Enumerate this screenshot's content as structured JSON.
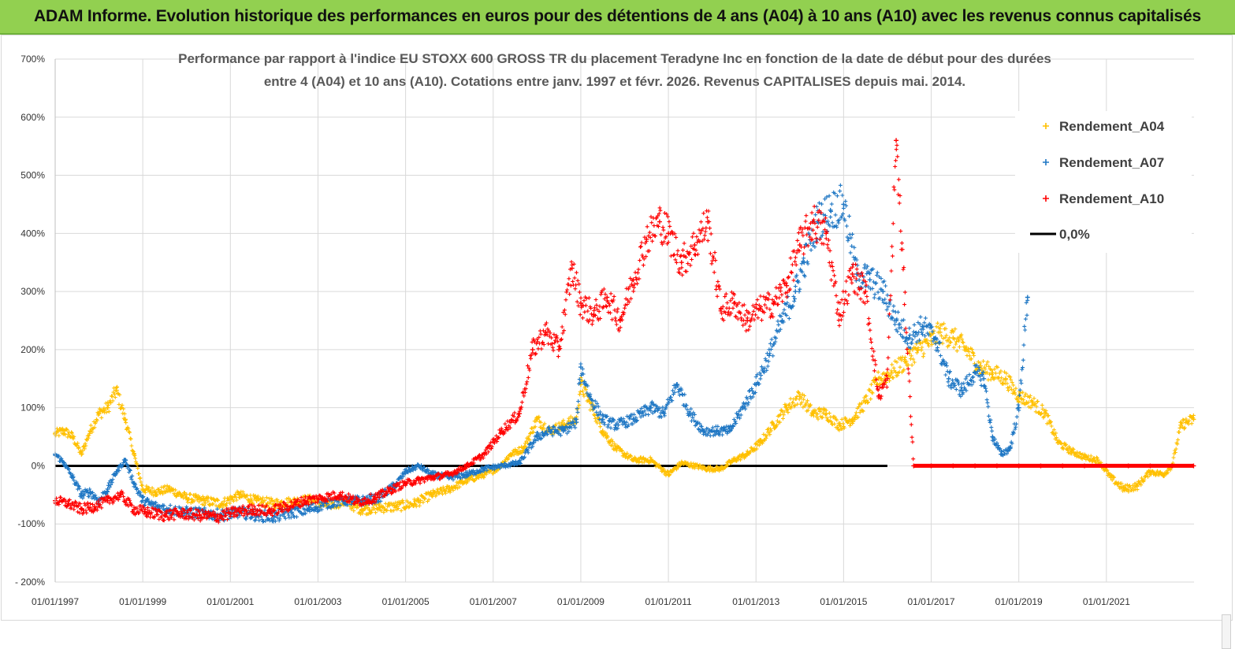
{
  "banner": {
    "title": "ADAM Informe. Evolution historique des performances en euros pour des détentions de 4 ans (A04) à 10 ans (A10) avec les revenus connus capitalisés",
    "background": "#92d050"
  },
  "chart_data": {
    "type": "scatter",
    "title_line1": "Performance par rapport à l'indice EU STOXX 600 GROSS TR  du placement Teradyne Inc en fonction de la date de début pour des durées",
    "title_line2": "entre 4 (A04) et 10 ans (A10). Cotations entre janv. 1997 et févr. 2026. Revenus CAPITALISES depuis mai. 2014.",
    "xlim": [
      "1997-01-01",
      "2022-12-31"
    ],
    "ylim": [
      -200,
      700
    ],
    "ytick_values": [
      -200,
      -100,
      0,
      100,
      200,
      300,
      400,
      500,
      600,
      700
    ],
    "ytick_labels": [
      "- 200%",
      "-100%",
      "0%",
      "100%",
      "200%",
      "300%",
      "400%",
      "500%",
      "600%",
      "700%"
    ],
    "xtick_labels": [
      "01/01/1997",
      "01/01/1999",
      "01/01/2001",
      "01/01/2003",
      "01/01/2005",
      "01/01/2007",
      "01/01/2009",
      "01/01/2011",
      "01/01/2013",
      "01/01/2015",
      "01/01/2017",
      "01/01/2019",
      "01/01/2021"
    ],
    "xtick_years": [
      1997,
      1999,
      2001,
      2003,
      2005,
      2007,
      2009,
      2011,
      2013,
      2015,
      2017,
      2019,
      2021
    ],
    "grid": true,
    "legend_position": "top-right",
    "reference_line": {
      "name": "0,0%",
      "value": 0,
      "from": 1997.0,
      "to": 2016.0,
      "color": "#000000"
    },
    "series": [
      {
        "name": "Rendement_A04",
        "color": "#ffc000",
        "marker": "plus",
        "x": [
          1997.0,
          1997.2,
          1997.4,
          1997.6,
          1997.8,
          1998.0,
          1998.2,
          1998.4,
          1998.6,
          1998.8,
          1999.0,
          1999.3,
          1999.6,
          2000.0,
          2000.4,
          2000.8,
          2001.2,
          2001.6,
          2002.0,
          2002.4,
          2002.8,
          2003.2,
          2003.6,
          2004.0,
          2004.4,
          2004.8,
          2005.2,
          2005.6,
          2006.0,
          2006.4,
          2006.8,
          2007.1,
          2007.4,
          2007.7,
          2008.0,
          2008.3,
          2008.6,
          2008.9,
          2009.0,
          2009.2,
          2009.5,
          2009.8,
          2010.2,
          2010.6,
          2011.0,
          2011.3,
          2011.6,
          2011.9,
          2012.2,
          2012.5,
          2012.8,
          2013.1,
          2013.4,
          2013.7,
          2014.0,
          2014.3,
          2014.6,
          2014.9,
          2015.2,
          2015.5,
          2015.8,
          2016.1,
          2016.4,
          2016.7,
          2017.0,
          2017.2,
          2017.5,
          2017.8,
          2018.1,
          2018.4,
          2018.7,
          2019.0,
          2019.3,
          2019.6,
          2019.9,
          2020.2,
          2020.5,
          2020.8,
          2021.1,
          2021.4,
          2021.7,
          2022.0,
          2022.3,
          2022.5,
          2022.7,
          2022.99
        ],
        "y": [
          55,
          60,
          50,
          20,
          60,
          90,
          100,
          130,
          80,
          20,
          -40,
          -45,
          -40,
          -55,
          -60,
          -65,
          -50,
          -60,
          -65,
          -62,
          -58,
          -68,
          -62,
          -75,
          -72,
          -70,
          -65,
          -50,
          -40,
          -25,
          -15,
          -5,
          20,
          30,
          80,
          60,
          70,
          80,
          140,
          110,
          60,
          30,
          10,
          10,
          -15,
          5,
          0,
          -5,
          -5,
          10,
          20,
          40,
          70,
          100,
          120,
          90,
          90,
          70,
          80,
          110,
          150,
          160,
          180,
          200,
          215,
          230,
          220,
          200,
          170,
          160,
          150,
          120,
          110,
          90,
          40,
          25,
          15,
          10,
          -20,
          -40,
          -35,
          -10,
          -15,
          0,
          70,
          80
        ]
      },
      {
        "name": "Rendement_A07",
        "color": "#1f77c4",
        "marker": "plus",
        "x": [
          1997.0,
          1997.2,
          1997.4,
          1997.6,
          1997.8,
          1998.0,
          1998.2,
          1998.4,
          1998.6,
          1998.8,
          1999.0,
          1999.3,
          1999.6,
          2000.0,
          2000.4,
          2000.8,
          2001.2,
          2001.6,
          2002.0,
          2002.4,
          2002.8,
          2003.2,
          2003.6,
          2004.0,
          2004.4,
          2004.8,
          2005.0,
          2005.3,
          2005.6,
          2006.0,
          2006.4,
          2006.8,
          2007.2,
          2007.6,
          2008.0,
          2008.3,
          2008.6,
          2008.9,
          2009.0,
          2009.2,
          2009.5,
          2009.8,
          2010.2,
          2010.6,
          2010.9,
          2011.2,
          2011.5,
          2011.8,
          2012.1,
          2012.4,
          2012.7,
          2013.0,
          2013.3,
          2013.6,
          2013.9,
          2014.1,
          2014.4,
          2014.7,
          2015.0,
          2015.3,
          2015.6,
          2015.9,
          2016.2,
          2016.5,
          2016.8,
          2017.1,
          2017.4,
          2017.7,
          2018.0,
          2018.2,
          2018.4,
          2018.6,
          2018.8,
          2019.0,
          2019.2
        ],
        "y": [
          20,
          5,
          -20,
          -50,
          -45,
          -60,
          -40,
          -10,
          10,
          -30,
          -60,
          -70,
          -75,
          -80,
          -82,
          -85,
          -80,
          -85,
          -88,
          -80,
          -75,
          -65,
          -60,
          -60,
          -55,
          -30,
          -10,
          0,
          -15,
          -20,
          -15,
          -5,
          0,
          5,
          50,
          60,
          60,
          75,
          170,
          120,
          80,
          70,
          80,
          100,
          90,
          140,
          90,
          60,
          60,
          60,
          100,
          140,
          190,
          250,
          300,
          350,
          420,
          440,
          450,
          330,
          320,
          300,
          250,
          220,
          240,
          220,
          150,
          130,
          160,
          150,
          50,
          20,
          30,
          100,
          290
        ]
      },
      {
        "name": "Rendement_A10",
        "color": "#ff0000",
        "marker": "plus",
        "x": [
          1997.0,
          1997.3,
          1997.6,
          1997.9,
          1998.2,
          1998.5,
          1998.8,
          1999.1,
          1999.5,
          1999.9,
          2000.3,
          2000.7,
          2001.1,
          2001.5,
          2001.9,
          2002.3,
          2002.7,
          2003.1,
          2003.5,
          2003.9,
          2004.3,
          2004.7,
          2005.0,
          2005.3,
          2005.6,
          2006.0,
          2006.4,
          2006.8,
          2007.2,
          2007.6,
          2007.9,
          2008.2,
          2008.5,
          2008.8,
          2009.0,
          2009.3,
          2009.6,
          2009.9,
          2010.2,
          2010.5,
          2010.8,
          2011.0,
          2011.3,
          2011.6,
          2011.9,
          2012.2,
          2012.5,
          2012.8,
          2013.1,
          2013.4,
          2013.7,
          2014.0,
          2014.3,
          2014.6,
          2014.9,
          2015.2,
          2015.5,
          2015.8,
          2016.0,
          2016.2,
          2016.6,
          2017.0,
          2017.5,
          2018.0,
          2018.5,
          2019.0,
          2019.5,
          2020.0,
          2020.5,
          2021.0,
          2021.5,
          2022.0,
          2022.5,
          2022.99
        ],
        "y": [
          -60,
          -65,
          -75,
          -70,
          -60,
          -50,
          -75,
          -80,
          -85,
          -82,
          -85,
          -88,
          -80,
          -75,
          -78,
          -70,
          -60,
          -55,
          -50,
          -62,
          -55,
          -40,
          -30,
          -25,
          -20,
          -15,
          0,
          20,
          60,
          90,
          200,
          230,
          200,
          340,
          280,
          260,
          290,
          250,
          320,
          390,
          420,
          400,
          350,
          380,
          420,
          270,
          280,
          250,
          270,
          280,
          310,
          380,
          420,
          400,
          260,
          330,
          300,
          120,
          150,
          560,
          0,
          0,
          0,
          0,
          0,
          0,
          0,
          0,
          0,
          0,
          0,
          0,
          0,
          0
        ]
      }
    ]
  }
}
